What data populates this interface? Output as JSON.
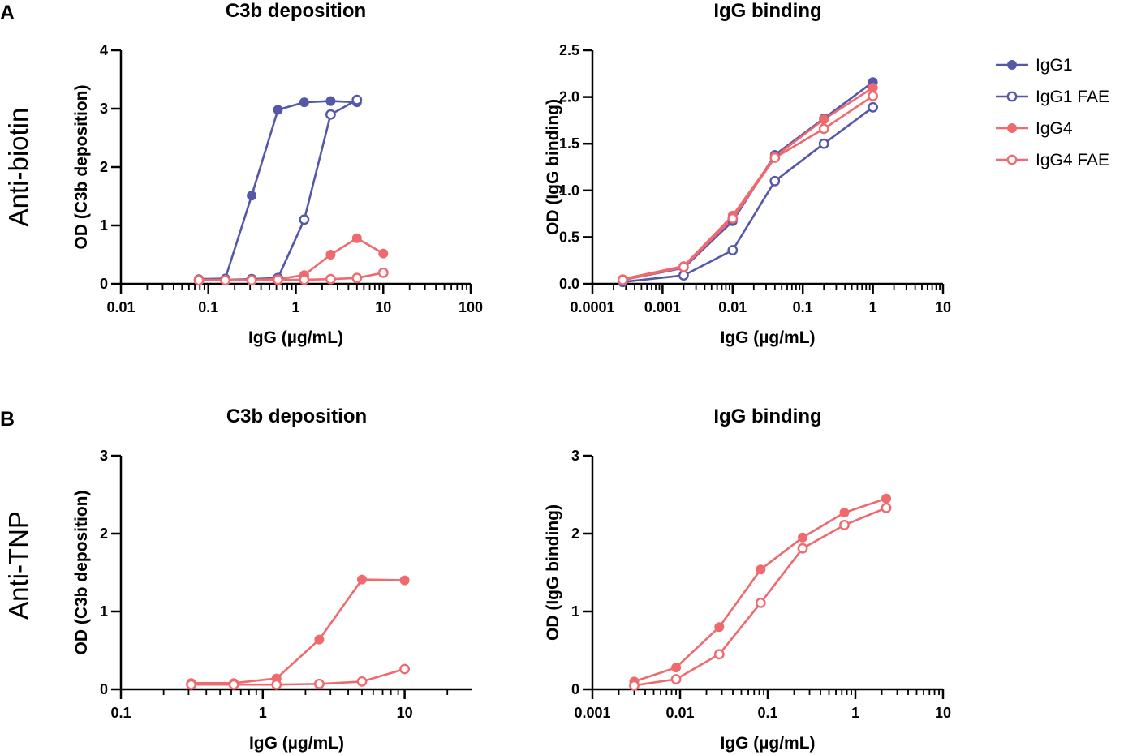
{
  "figure": {
    "panels": [
      {
        "letter": "A",
        "row_label": "Anti-biotin"
      },
      {
        "letter": "B",
        "row_label": "Anti-TNP"
      }
    ]
  },
  "series_styles": {
    "IgG1": {
      "color": "#5558a8",
      "filled": true
    },
    "IgG1 FAE": {
      "color": "#5558a8",
      "filled": false
    },
    "IgG4": {
      "color": "#ee6a6e",
      "filled": true
    },
    "IgG4 FAE": {
      "color": "#ee6a6e",
      "filled": false
    }
  },
  "legend": {
    "entries": [
      "IgG1",
      "IgG1 FAE",
      "IgG4",
      "IgG4 FAE"
    ]
  },
  "chart_data": [
    {
      "id": "a-c3b",
      "type": "line",
      "title": "C3b deposition",
      "xlabel": "IgG (µg/mL)",
      "ylabel": "OD (C3b deposition)",
      "xscale": "log",
      "xlim": [
        0.01,
        100
      ],
      "xticks": [
        0.01,
        0.1,
        1,
        10,
        100
      ],
      "xtick_labels": [
        "0.01",
        "0.1",
        "1",
        "10",
        "100"
      ],
      "ylim": [
        0,
        4
      ],
      "yticks": [
        0,
        1,
        2,
        3,
        4
      ],
      "ytick_labels": [
        "0",
        "1",
        "2",
        "3",
        "4"
      ],
      "series": [
        {
          "name": "IgG1",
          "x": [
            0.078,
            0.156,
            0.313,
            0.625,
            1.25,
            2.5,
            5
          ],
          "y": [
            0.08,
            0.09,
            1.51,
            2.98,
            3.11,
            3.13,
            3.11
          ]
        },
        {
          "name": "IgG1 FAE",
          "x": [
            0.078,
            0.156,
            0.313,
            0.625,
            1.25,
            2.5,
            5
          ],
          "y": [
            0.07,
            0.07,
            0.08,
            0.1,
            1.1,
            2.9,
            3.15
          ]
        },
        {
          "name": "IgG4",
          "x": [
            0.078,
            0.156,
            0.313,
            0.625,
            1.25,
            2.5,
            5,
            10
          ],
          "y": [
            0.07,
            0.07,
            0.07,
            0.08,
            0.15,
            0.5,
            0.78,
            0.52
          ]
        },
        {
          "name": "IgG4 FAE",
          "x": [
            0.078,
            0.156,
            0.313,
            0.625,
            1.25,
            2.5,
            5,
            10
          ],
          "y": [
            0.06,
            0.06,
            0.06,
            0.07,
            0.07,
            0.08,
            0.1,
            0.19
          ]
        }
      ]
    },
    {
      "id": "a-igg",
      "type": "line",
      "title": "IgG binding",
      "xlabel": "IgG (µg/mL)",
      "ylabel": "OD (IgG binding)",
      "xscale": "log",
      "xlim": [
        0.0001,
        10
      ],
      "xticks": [
        0.0001,
        0.001,
        0.01,
        0.1,
        1,
        10
      ],
      "xtick_labels": [
        "0.0001",
        "0.001",
        "0.01",
        "0.1",
        "1",
        "10"
      ],
      "ylim": [
        0,
        2.5
      ],
      "yticks": [
        0,
        0.5,
        1,
        1.5,
        2,
        2.5
      ],
      "ytick_labels": [
        "0.0",
        "0.5",
        "1.0",
        "1.5",
        "2.0",
        "2.5"
      ],
      "series": [
        {
          "name": "IgG1",
          "x": [
            0.00027,
            0.002,
            0.01,
            0.04,
            0.2,
            1
          ],
          "y": [
            0.04,
            0.17,
            0.67,
            1.38,
            1.77,
            2.16
          ]
        },
        {
          "name": "IgG1 FAE",
          "x": [
            0.00027,
            0.002,
            0.01,
            0.04,
            0.2,
            1
          ],
          "y": [
            0.02,
            0.09,
            0.36,
            1.1,
            1.5,
            1.89
          ]
        },
        {
          "name": "IgG4",
          "x": [
            0.00027,
            0.002,
            0.01,
            0.04,
            0.2,
            1
          ],
          "y": [
            0.05,
            0.19,
            0.73,
            1.36,
            1.76,
            2.1
          ]
        },
        {
          "name": "IgG4 FAE",
          "x": [
            0.00027,
            0.002,
            0.01,
            0.04,
            0.2,
            1
          ],
          "y": [
            0.04,
            0.18,
            0.7,
            1.35,
            1.66,
            2.01
          ]
        }
      ]
    },
    {
      "id": "b-c3b",
      "type": "line",
      "title": "C3b deposition",
      "xlabel": "IgG (µg/mL)",
      "ylabel": "OD (C3b deposition)",
      "xscale": "log",
      "xlim": [
        0.1,
        30
      ],
      "xticks": [
        0.1,
        1,
        10
      ],
      "xtick_labels": [
        "0.1",
        "1",
        "10"
      ],
      "ylim": [
        0,
        3
      ],
      "yticks": [
        0,
        1,
        2,
        3
      ],
      "ytick_labels": [
        "0",
        "1",
        "2",
        "3"
      ],
      "series": [
        {
          "name": "IgG4",
          "x": [
            0.313,
            0.625,
            1.25,
            2.5,
            5,
            10
          ],
          "y": [
            0.08,
            0.08,
            0.14,
            0.64,
            1.41,
            1.4
          ]
        },
        {
          "name": "IgG4 FAE",
          "x": [
            0.313,
            0.625,
            1.25,
            2.5,
            5,
            10
          ],
          "y": [
            0.06,
            0.06,
            0.06,
            0.07,
            0.1,
            0.26
          ]
        }
      ]
    },
    {
      "id": "b-igg",
      "type": "line",
      "title": "IgG binding",
      "xlabel": "IgG (µg/mL)",
      "ylabel": "OD (IgG binding)",
      "xscale": "log",
      "xlim": [
        0.001,
        10
      ],
      "xticks": [
        0.001,
        0.01,
        0.1,
        1,
        10
      ],
      "xtick_labels": [
        "0.001",
        "0.01",
        "0.1",
        "1",
        "10"
      ],
      "ylim": [
        0,
        3
      ],
      "yticks": [
        0,
        1,
        2,
        3
      ],
      "ytick_labels": [
        "0",
        "1",
        "2",
        "3"
      ],
      "series": [
        {
          "name": "IgG4",
          "x": [
            0.003,
            0.009,
            0.028,
            0.083,
            0.25,
            0.75,
            2.25
          ],
          "y": [
            0.1,
            0.28,
            0.8,
            1.54,
            1.95,
            2.27,
            2.45
          ]
        },
        {
          "name": "IgG4 FAE",
          "x": [
            0.003,
            0.009,
            0.028,
            0.083,
            0.25,
            0.75,
            2.25
          ],
          "y": [
            0.05,
            0.13,
            0.45,
            1.11,
            1.81,
            2.11,
            2.33
          ]
        }
      ]
    }
  ]
}
